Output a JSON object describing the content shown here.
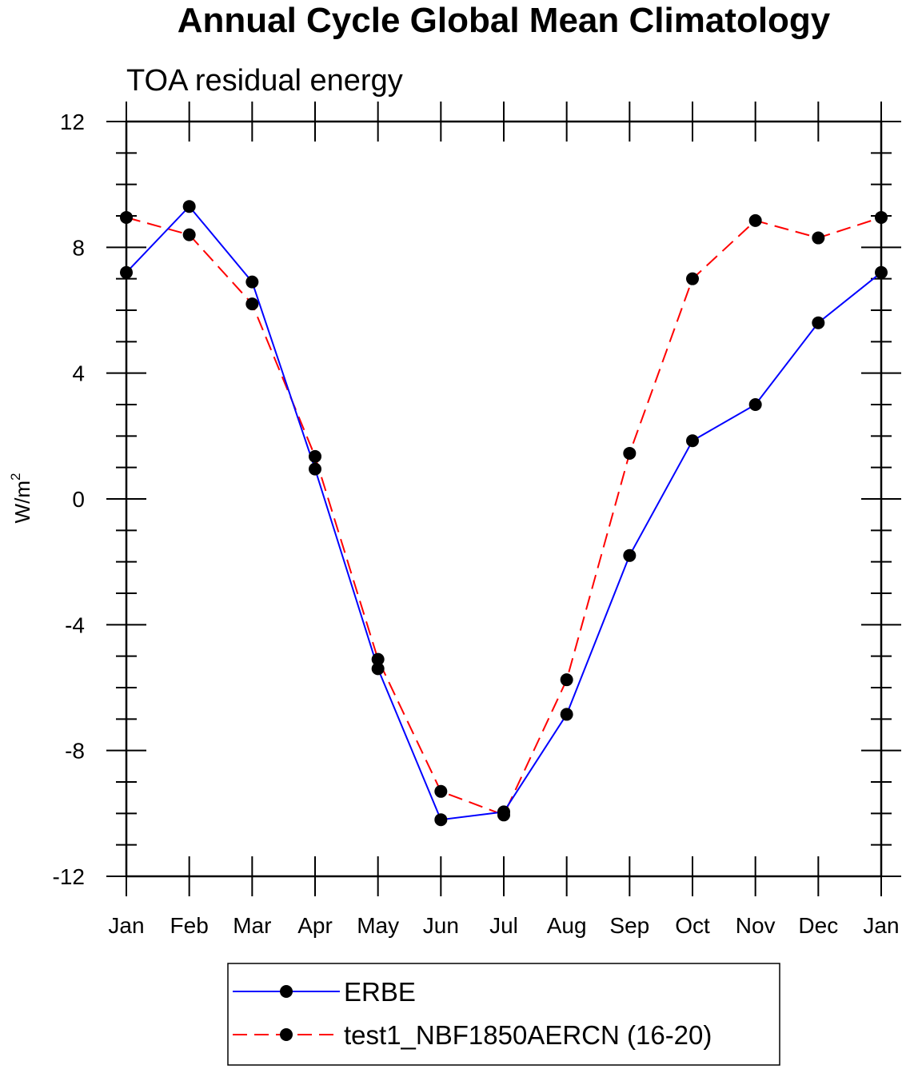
{
  "chart_data": {
    "type": "line",
    "title": "Annual Cycle Global Mean Climatology",
    "subtitle": "TOA residual energy",
    "xlabel": "",
    "ylabel": "W/m",
    "ylabel_sup": "2",
    "categories": [
      "Jan",
      "Feb",
      "Mar",
      "Apr",
      "May",
      "Jun",
      "Jul",
      "Aug",
      "Sep",
      "Oct",
      "Nov",
      "Dec",
      "Jan"
    ],
    "ylim": [
      -12,
      12
    ],
    "yticks": [
      12,
      8,
      4,
      0,
      -4,
      -8,
      -12
    ],
    "grid": false,
    "legend_position": "bottom",
    "series": [
      {
        "name": "ERBE",
        "color": "#0000ff",
        "line_style": "solid",
        "marker": "filled-circle",
        "values": [
          7.2,
          9.3,
          6.9,
          0.95,
          -5.4,
          -10.2,
          -9.95,
          -6.85,
          -1.8,
          1.85,
          3.0,
          5.6,
          7.2
        ]
      },
      {
        "name": "test1_NBF1850AERCN (16-20)",
        "color": "#ff0000",
        "line_style": "dashed",
        "marker": "filled-circle",
        "values": [
          8.95,
          8.4,
          6.2,
          1.35,
          -5.1,
          -9.3,
          -10.05,
          -5.75,
          1.45,
          7.0,
          8.85,
          8.3,
          8.95
        ]
      }
    ]
  }
}
